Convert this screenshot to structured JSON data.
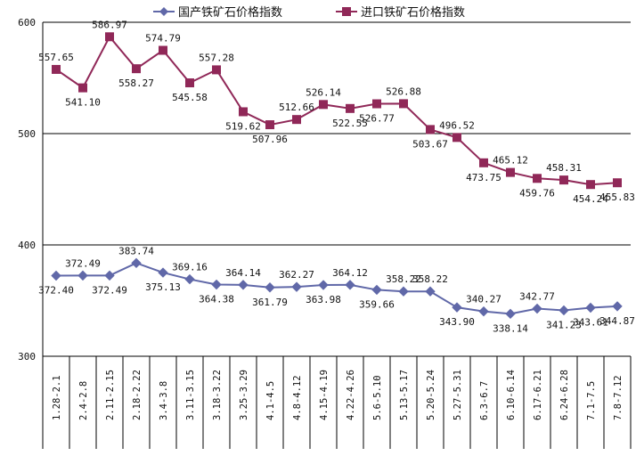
{
  "chart_data": {
    "type": "line",
    "title": "",
    "xlabel": "",
    "ylabel": "",
    "ylim": [
      300,
      600
    ],
    "yticks": [
      300,
      400,
      500,
      600
    ],
    "grid": {
      "horizontal": true,
      "vertical": false
    },
    "legend_position": "top",
    "categories": [
      "1.28-2.1",
      "2.4-2.8",
      "2.11-2.15",
      "2.18-2.22",
      "3.4-3.8",
      "3.11-3.15",
      "3.18-3.22",
      "3.25-3.29",
      "4.1-4.5",
      "4.8-4.12",
      "4.15-4.19",
      "4.22-4.26",
      "5.6-5.10",
      "5.13-5.17",
      "5.20-5.24",
      "5.27-5.31",
      "6.3-6.7",
      "6.10-6.14",
      "6.17-6.21",
      "6.24-6.28",
      "7.1-7.5",
      "7.8-7.12"
    ],
    "series": [
      {
        "name": "国产铁矿石价格指数",
        "color": "#6068a8",
        "marker": "diamond",
        "values": [
          372.4,
          372.49,
          372.49,
          383.74,
          375.13,
          369.16,
          364.38,
          364.14,
          361.79,
          362.27,
          363.98,
          364.12,
          359.66,
          358.22,
          358.22,
          343.9,
          340.27,
          338.14,
          342.77,
          341.23,
          343.61,
          344.87
        ],
        "labels": [
          "372.40",
          "372.49",
          "372.49",
          "383.74",
          "375.13",
          "369.16",
          "364.38",
          "364.14",
          "361.79",
          "362.27",
          "363.98",
          "364.12",
          "359.66",
          "358.22",
          "358.22",
          "343.90",
          "340.27",
          "338.14",
          "342.77",
          "341.23",
          "343.61",
          "344.87"
        ]
      },
      {
        "name": "进口铁矿石价格指数",
        "color": "#902858",
        "marker": "square",
        "values": [
          557.65,
          541.1,
          586.97,
          558.27,
          574.79,
          545.58,
          557.28,
          519.62,
          507.96,
          512.66,
          526.14,
          522.55,
          526.77,
          526.88,
          503.67,
          496.52,
          473.75,
          465.12,
          459.76,
          458.31,
          454.24,
          455.83
        ],
        "labels": [
          "557.65",
          "541.10",
          "586.97",
          "558.27",
          "574.79",
          "545.58",
          "557.28",
          "519.62",
          "507.96",
          "512.66",
          "526.14",
          "522.55",
          "526.77",
          "526.88",
          "503.67",
          "496.52",
          "473.75",
          "465.12",
          "459.76",
          "458.31",
          "454.24",
          "455.83"
        ]
      }
    ]
  }
}
